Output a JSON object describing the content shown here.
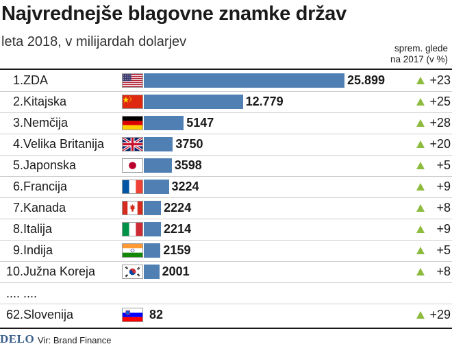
{
  "title": "Najvrednejše blagovne znamke držav",
  "subtitle": "leta 2018, v milijardah dolarjev",
  "column_header": {
    "line1": "sprem. glede",
    "line2": "na 2017 (v %)"
  },
  "ellipsis": ".... ....",
  "footer": {
    "logo": "DELO",
    "source": "Vir: Brand Finance"
  },
  "colors": {
    "bar": "#4f7fb3",
    "up_arrow": "#8cbb3e"
  },
  "chart_data": {
    "type": "bar",
    "orientation": "horizontal",
    "title": "Najvrednejše blagovne znamke držav",
    "subtitle": "leta 2018, v milijardah dolarjev",
    "categories": [
      "ZDA",
      "Kitajska",
      "Nemčija",
      "Velika Britanija",
      "Japonska",
      "Francija",
      "Kanada",
      "Italija",
      "Indija",
      "Južna Koreja",
      "Slovenija"
    ],
    "ranks": [
      "1.",
      "2.",
      "3.",
      "4.",
      "5.",
      "6.",
      "7.",
      "8.",
      "9.",
      "10.",
      "62."
    ],
    "values": [
      25899,
      12779,
      5147,
      3750,
      3598,
      3224,
      2224,
      2214,
      2159,
      2001,
      82
    ],
    "value_labels": [
      "25.899",
      "12.779",
      "5147",
      "3750",
      "3598",
      "3224",
      "2224",
      "2214",
      "2159",
      "2001",
      "82"
    ],
    "change_vs_2017": [
      "+23",
      "+25",
      "+28",
      "+20",
      "+5",
      "+9",
      "+8",
      "+9",
      "+5",
      "+8",
      "+29"
    ],
    "flags": [
      "us-flag",
      "china-flag",
      "germany-flag",
      "uk-flag",
      "japan-flag",
      "france-flag",
      "canada-flag",
      "italy-flag",
      "india-flag",
      "south-korea-flag",
      "slovenia-flag"
    ],
    "xlim": [
      0,
      25899
    ]
  }
}
